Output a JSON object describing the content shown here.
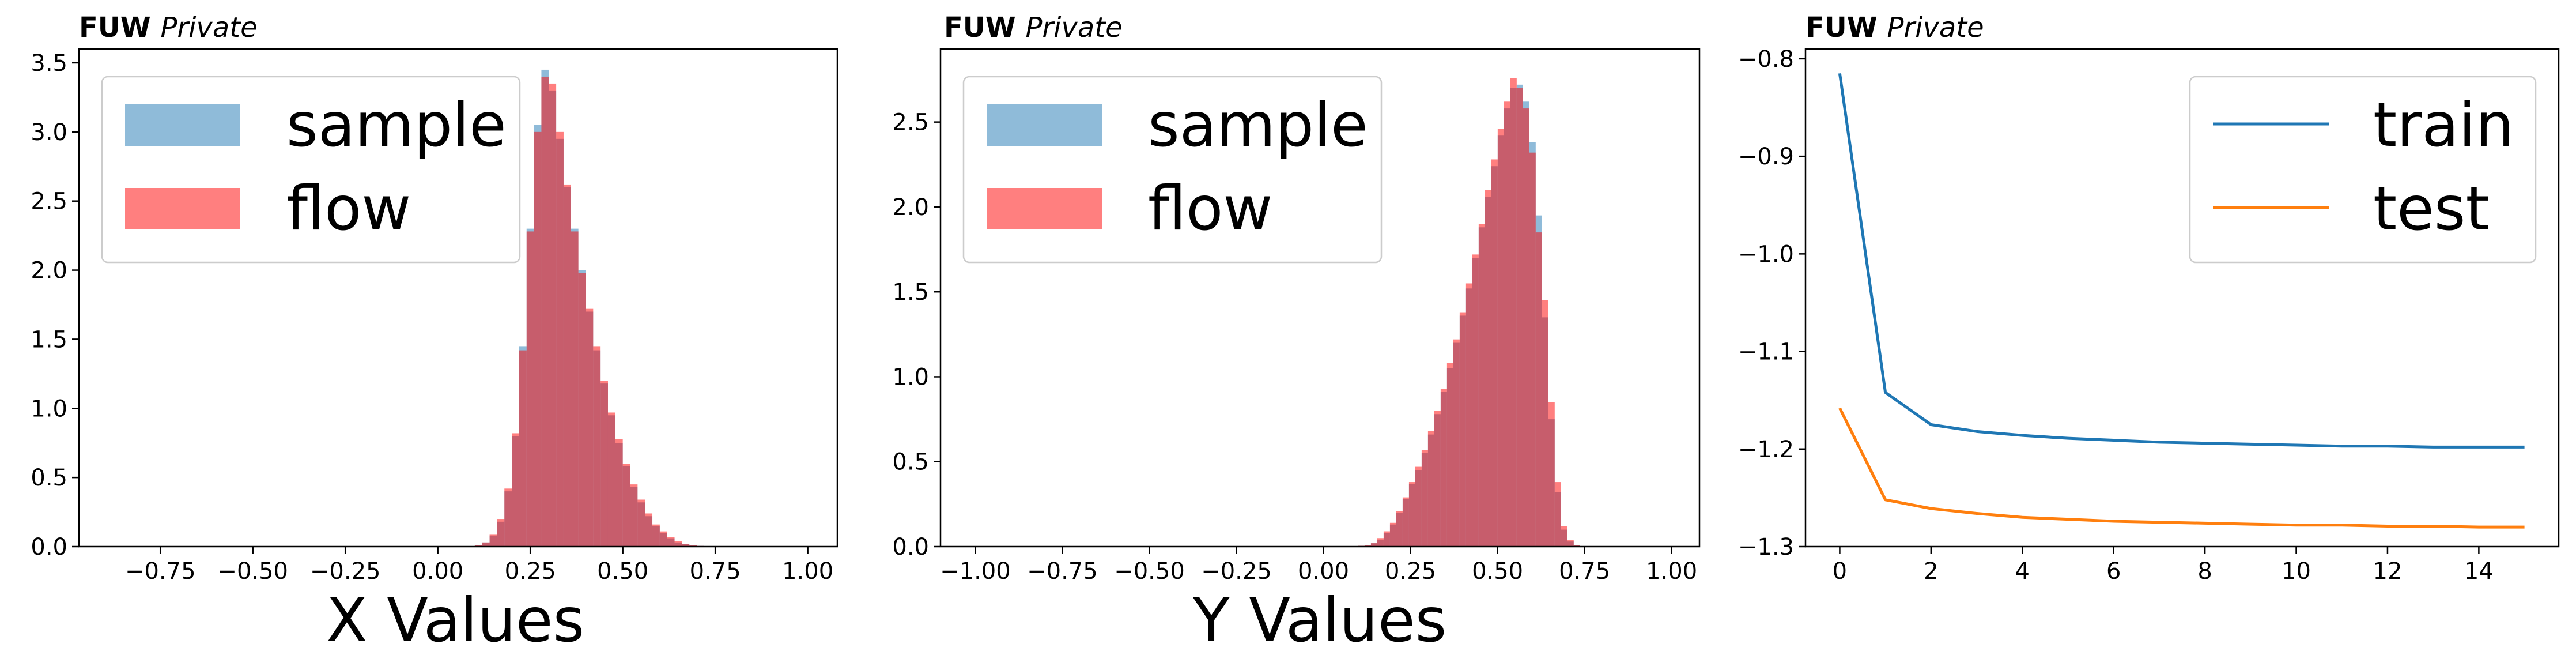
{
  "watermark": {
    "bold": "FUW",
    "italic": "Private"
  },
  "colors": {
    "sample": "#1f77b4",
    "flow": "#ff0000",
    "train": "#1f77b4",
    "test": "#ff7f0e"
  },
  "chart_data": [
    {
      "type": "histogram",
      "xlabel": "X Values",
      "ylabel": "",
      "xlim": [
        -0.97,
        1.08
      ],
      "ylim": [
        0,
        3.6
      ],
      "xticks": [
        -0.75,
        -0.5,
        -0.25,
        0.0,
        0.25,
        0.5,
        0.75,
        1.0
      ],
      "xtick_labels": [
        "−0.75",
        "−0.50",
        "−0.25",
        "0.00",
        "0.25",
        "0.50",
        "0.75",
        "1.00"
      ],
      "yticks": [
        0.0,
        0.5,
        1.0,
        1.5,
        2.0,
        2.5,
        3.0,
        3.5
      ],
      "ytick_labels": [
        "0.0",
        "0.5",
        "1.0",
        "1.5",
        "2.0",
        "2.5",
        "3.0",
        "3.5"
      ],
      "legend": {
        "position": "upper left",
        "entries": [
          "sample",
          "flow"
        ]
      },
      "bin_start": 0.1,
      "bin_width": 0.02,
      "series": [
        {
          "name": "sample",
          "color_key": "sample",
          "opacity": 0.5,
          "values": [
            0.01,
            0.03,
            0.08,
            0.18,
            0.4,
            0.8,
            1.45,
            2.3,
            3.05,
            3.45,
            3.3,
            2.95,
            2.6,
            2.3,
            2.0,
            1.7,
            1.42,
            1.18,
            0.95,
            0.75,
            0.58,
            0.43,
            0.32,
            0.22,
            0.15,
            0.1,
            0.06,
            0.03,
            0.02,
            0.01,
            0.005,
            0.002,
            0.001,
            0.0005,
            0.0002
          ]
        },
        {
          "name": "flow",
          "color_key": "flow",
          "opacity": 0.5,
          "values": [
            0.01,
            0.03,
            0.09,
            0.2,
            0.42,
            0.82,
            1.42,
            2.28,
            3.0,
            3.4,
            3.35,
            3.0,
            2.62,
            2.28,
            1.98,
            1.72,
            1.45,
            1.2,
            0.97,
            0.78,
            0.6,
            0.45,
            0.34,
            0.24,
            0.16,
            0.11,
            0.07,
            0.04,
            0.02,
            0.01,
            0.005,
            0.002,
            0.001,
            0.0005,
            0.0002
          ]
        }
      ]
    },
    {
      "type": "histogram",
      "xlabel": "Y Values",
      "ylabel": "",
      "xlim": [
        -1.1,
        1.08
      ],
      "ylim": [
        0,
        2.93
      ],
      "xticks": [
        -1.0,
        -0.75,
        -0.5,
        -0.25,
        0.0,
        0.25,
        0.5,
        0.75,
        1.0
      ],
      "xtick_labels": [
        "−1.00",
        "−0.75",
        "−0.50",
        "−0.25",
        "0.00",
        "0.25",
        "0.50",
        "0.75",
        "1.00"
      ],
      "yticks": [
        0.0,
        0.5,
        1.0,
        1.5,
        2.0,
        2.5
      ],
      "ytick_labels": [
        "0.0",
        "0.5",
        "1.0",
        "1.5",
        "2.0",
        "2.5"
      ],
      "legend": {
        "position": "upper left",
        "entries": [
          "sample",
          "flow"
        ]
      },
      "bin_start": 0.1,
      "bin_width": 0.0182,
      "series": [
        {
          "name": "sample",
          "color_key": "sample",
          "opacity": 0.5,
          "values": [
            0.005,
            0.01,
            0.02,
            0.04,
            0.08,
            0.13,
            0.2,
            0.28,
            0.37,
            0.45,
            0.55,
            0.66,
            0.78,
            0.91,
            1.05,
            1.2,
            1.36,
            1.52,
            1.7,
            1.88,
            2.06,
            2.24,
            2.42,
            2.58,
            2.7,
            2.72,
            2.62,
            2.38,
            1.95,
            1.35,
            0.75,
            0.32,
            0.1,
            0.03,
            0.01
          ]
        },
        {
          "name": "flow",
          "color_key": "flow",
          "opacity": 0.5,
          "values": [
            0.005,
            0.01,
            0.02,
            0.05,
            0.09,
            0.14,
            0.21,
            0.29,
            0.38,
            0.47,
            0.57,
            0.68,
            0.8,
            0.93,
            1.08,
            1.22,
            1.38,
            1.55,
            1.72,
            1.9,
            2.1,
            2.28,
            2.46,
            2.62,
            2.76,
            2.7,
            2.58,
            2.32,
            1.85,
            1.45,
            0.85,
            0.38,
            0.12,
            0.04,
            0.01
          ]
        }
      ]
    },
    {
      "type": "line",
      "xlabel": "",
      "ylabel": "",
      "xlim": [
        -0.75,
        15.75
      ],
      "ylim": [
        -1.3,
        -0.79
      ],
      "xticks": [
        0,
        2,
        4,
        6,
        8,
        10,
        12,
        14
      ],
      "xtick_labels": [
        "0",
        "2",
        "4",
        "6",
        "8",
        "10",
        "12",
        "14"
      ],
      "yticks": [
        -0.8,
        -0.9,
        -1.0,
        -1.1,
        -1.2,
        -1.3
      ],
      "ytick_labels": [
        "−0.8",
        "−0.9",
        "−1.0",
        "−1.1",
        "−1.2",
        "−1.3"
      ],
      "legend": {
        "position": "upper right",
        "entries": [
          "train",
          "test"
        ]
      },
      "x": [
        0,
        1,
        2,
        3,
        4,
        5,
        6,
        7,
        8,
        9,
        10,
        11,
        12,
        13,
        14,
        15
      ],
      "series": [
        {
          "name": "train",
          "color_key": "train",
          "values": [
            -0.815,
            -1.142,
            -1.175,
            -1.182,
            -1.186,
            -1.189,
            -1.191,
            -1.193,
            -1.194,
            -1.195,
            -1.196,
            -1.197,
            -1.197,
            -1.198,
            -1.198,
            -1.198
          ]
        },
        {
          "name": "test",
          "color_key": "test",
          "values": [
            -1.158,
            -1.252,
            -1.261,
            -1.266,
            -1.27,
            -1.272,
            -1.274,
            -1.275,
            -1.276,
            -1.277,
            -1.278,
            -1.278,
            -1.279,
            -1.279,
            -1.28,
            -1.28
          ]
        }
      ]
    }
  ]
}
